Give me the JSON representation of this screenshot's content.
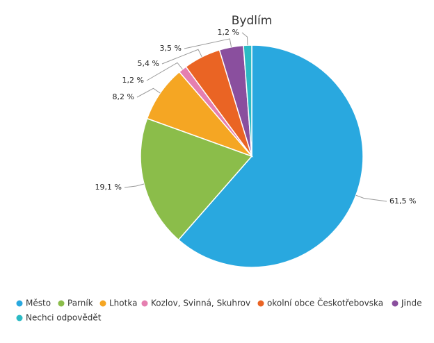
{
  "chart_data": {
    "type": "pie",
    "title": "Bydlím",
    "categories": [
      "Město",
      "Parník",
      "Lhotka",
      "Kozlov, Svinná, Skuhrov",
      "okolní obce Českotřebovska",
      "Jinde",
      "Nechci odpovědět"
    ],
    "values": [
      61.5,
      19.1,
      8.2,
      1.2,
      5.4,
      3.5,
      1.2
    ],
    "value_labels": [
      "61,5 %",
      "19,1 %",
      "8,2 %",
      "1,2 %",
      "5,4 %",
      "3,5 %",
      "1,2 %"
    ],
    "colors": [
      "#29a8df",
      "#8bbd4a",
      "#f5a623",
      "#e57fb0",
      "#ea6424",
      "#8a4f9e",
      "#2bbac4"
    ],
    "legend": "bottom"
  }
}
